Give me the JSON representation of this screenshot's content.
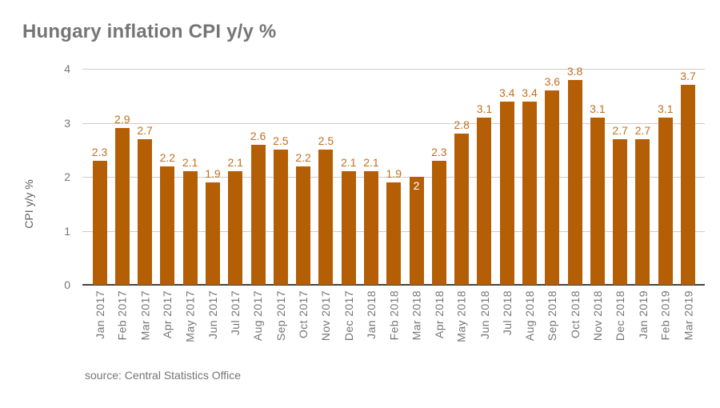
{
  "title": "Hungary inflation CPI y/y %",
  "source_note": "source: Central Statistics Office",
  "colors": {
    "background": "#ffffff",
    "bar": "#b45f06",
    "annotation": "#c0701e",
    "inside_annotation": "#ffffff",
    "title_text": "#757575",
    "axis_text": "#757575",
    "axis_title_text": "#616161",
    "gridline": "#cccccc",
    "baseline": "#424242"
  },
  "chart_data": {
    "type": "bar",
    "title": "Hungary inflation CPI y/y %",
    "xlabel": "",
    "ylabel": "CPI y/y %",
    "ylim": [
      0,
      4
    ],
    "yticks": [
      0,
      1,
      2,
      3,
      4
    ],
    "grid": true,
    "legend": "none",
    "bar_color": "#b45f06",
    "annotation_color": "#c0701e",
    "categories": [
      "Jan 2017",
      "Feb 2017",
      "Mar 2017",
      "Apr 2017",
      "May 2017",
      "Jun 2017",
      "Jul 2017",
      "Aug 2017",
      "Sep 2017",
      "Oct 2017",
      "Nov 2017",
      "Dec 2017",
      "Jan 2018",
      "Feb 2018",
      "Mar 2018",
      "Apr 2018",
      "May 2018",
      "Jun 2018",
      "Jul 2018",
      "Aug 2018",
      "Sep 2018",
      "Oct 2018",
      "Nov 2018",
      "Dec 2018",
      "Jan 2019",
      "Feb 2019",
      "Mar 2019"
    ],
    "values": [
      2.3,
      2.9,
      2.7,
      2.2,
      2.1,
      1.9,
      2.1,
      2.6,
      2.5,
      2.2,
      2.5,
      2.1,
      2.1,
      1.9,
      2,
      2.3,
      2.8,
      3.1,
      3.4,
      3.4,
      3.6,
      3.8,
      3.1,
      2.7,
      2.7,
      3.1,
      3.7
    ],
    "inside_annotation_category": "Mar 2018"
  }
}
